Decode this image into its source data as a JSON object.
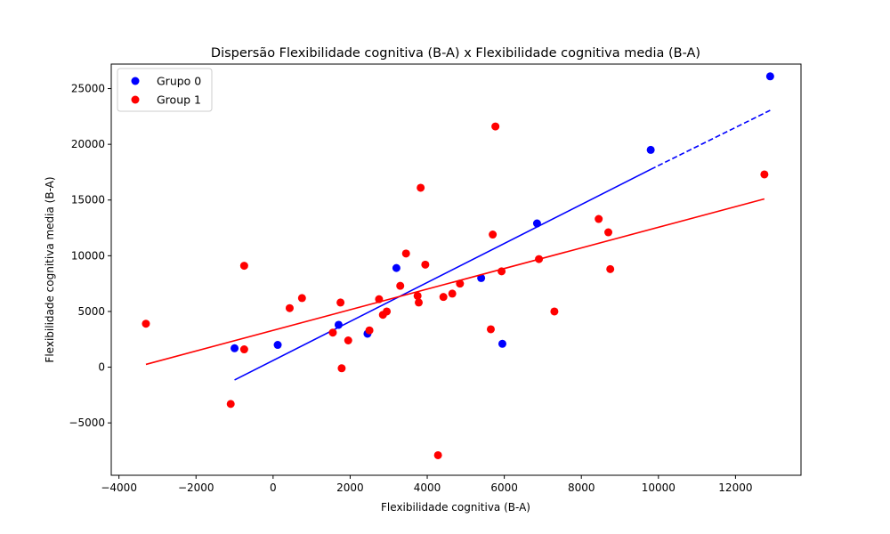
{
  "chart_data": {
    "type": "scatter",
    "title": "Dispersão Flexibilidade cognitiva (B-A) x Flexibilidade cognitiva media (B-A)",
    "xlabel": "Flexibilidade cognitiva (B-A)",
    "ylabel": "Flexibilidade cognitiva media (B-A)",
    "xlim": [
      -4200,
      13700
    ],
    "ylim": [
      -9700,
      27200
    ],
    "xticks": [
      -4000,
      -2000,
      0,
      2000,
      4000,
      6000,
      8000,
      10000,
      12000
    ],
    "yticks": [
      -5000,
      0,
      5000,
      10000,
      15000,
      20000,
      25000
    ],
    "legend_position": "upper-left",
    "grid": false,
    "series": [
      {
        "name": "Grupo 0",
        "color": "#0000ff",
        "points": [
          [
            -1000,
            1700
          ],
          [
            120,
            2000
          ],
          [
            1700,
            3800
          ],
          [
            2450,
            3000
          ],
          [
            3200,
            8900
          ],
          [
            5400,
            8000
          ],
          [
            5950,
            2100
          ],
          [
            6850,
            12900
          ],
          [
            9800,
            19500
          ],
          [
            12900,
            26100
          ]
        ],
        "fit": {
          "x0": -1000,
          "y0": -1150,
          "x_solid_end": 9800,
          "y_solid_end": 17750,
          "x1": 12900,
          "y1": 23050
        }
      },
      {
        "name": "Group 1",
        "color": "#ff0000",
        "points": [
          [
            -3300,
            3900
          ],
          [
            -1100,
            -3300
          ],
          [
            -750,
            9100
          ],
          [
            -750,
            1600
          ],
          [
            430,
            5300
          ],
          [
            750,
            6200
          ],
          [
            1550,
            3100
          ],
          [
            1750,
            5800
          ],
          [
            1780,
            -100
          ],
          [
            1950,
            2400
          ],
          [
            2500,
            3300
          ],
          [
            2750,
            6100
          ],
          [
            2850,
            4700
          ],
          [
            2950,
            5000
          ],
          [
            3300,
            7300
          ],
          [
            3450,
            10200
          ],
          [
            3750,
            6400
          ],
          [
            3780,
            5800
          ],
          [
            3830,
            16100
          ],
          [
            3950,
            9200
          ],
          [
            4280,
            -7900
          ],
          [
            4420,
            6300
          ],
          [
            4650,
            6600
          ],
          [
            4850,
            7500
          ],
          [
            5650,
            3400
          ],
          [
            5700,
            11900
          ],
          [
            5770,
            21600
          ],
          [
            5930,
            8600
          ],
          [
            6900,
            9700
          ],
          [
            7300,
            5000
          ],
          [
            8450,
            13300
          ],
          [
            8700,
            12100
          ],
          [
            8750,
            8800
          ],
          [
            12750,
            17300
          ]
        ],
        "fit": {
          "x0": -3300,
          "y0": 250,
          "x1": 12750,
          "y1": 15100
        }
      }
    ]
  }
}
